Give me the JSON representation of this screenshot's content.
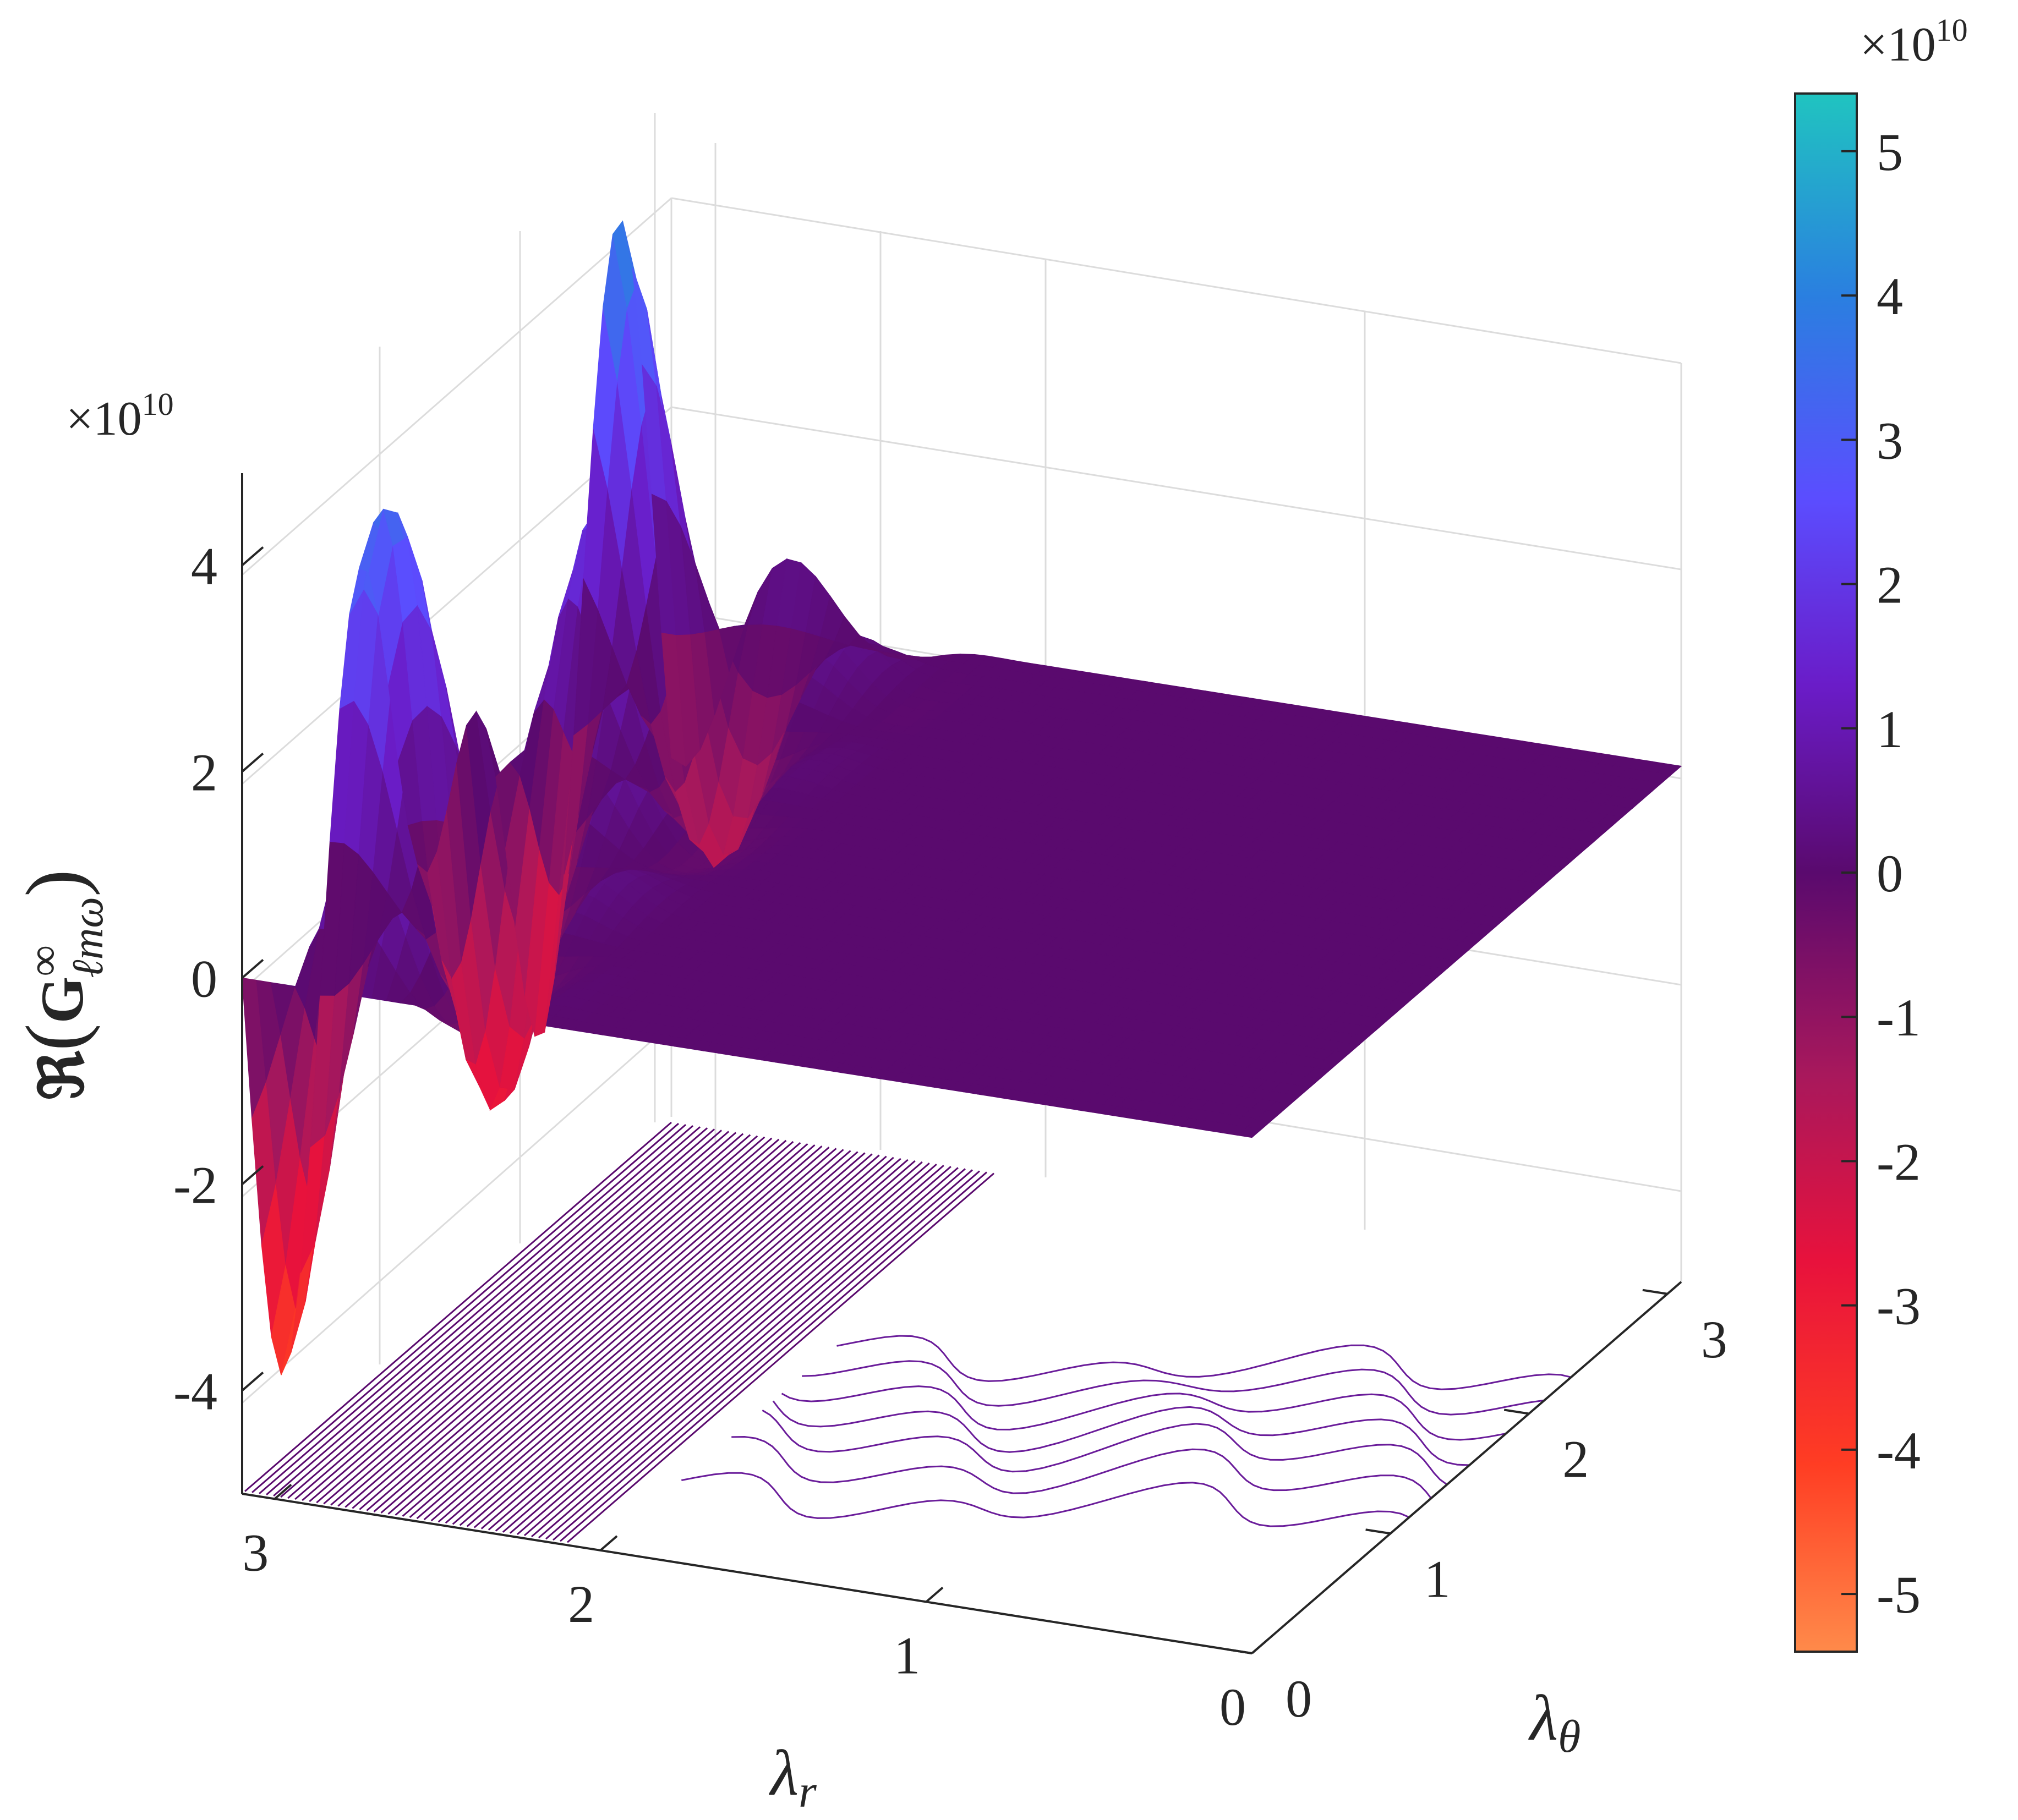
{
  "chart_data": {
    "type": "surface3d",
    "title": "",
    "xlabel": "λ_r",
    "ylabel": "λ_θ",
    "zlabel": "ℜ(G^∞_{ℓmω})",
    "xlabel_main": "λ",
    "xlabel_sub": "r",
    "ylabel_main": "λ",
    "ylabel_sub": "θ",
    "zlabel_main": "ℜ",
    "zlabel_G": "G",
    "zlabel_sup": "∞",
    "zlabel_sub": "ℓmω",
    "z_exponent": "×10",
    "z_exponent_power": "10",
    "x_ticks": [
      "0",
      "1",
      "2",
      "3"
    ],
    "y_ticks": [
      "0",
      "1",
      "2",
      "3"
    ],
    "z_ticks": [
      "-4",
      "-2",
      "0",
      "2",
      "4"
    ],
    "xlim": [
      0,
      3.1
    ],
    "ylim": [
      0,
      3.1
    ],
    "zlim": [
      -5,
      5
    ],
    "peak_region": {
      "lambda_r": [
        2.0,
        3.1
      ],
      "lambda_theta": [
        0.4,
        3.1
      ],
      "z_min": -3.3,
      "z_max": 5.3
    },
    "flat_value": 0,
    "contour_projection": true,
    "grid": true,
    "colorbar": {
      "ticks": [
        "5",
        "4",
        "3",
        "2",
        "1",
        "0",
        "-1",
        "-2",
        "-3",
        "-4",
        "-5"
      ],
      "exponent": "×10",
      "exponent_power": "10",
      "range": [
        -5.4,
        5.4
      ],
      "colors": [
        "#ff8a4a",
        "#ff3d23",
        "#e8123c",
        "#a8185c",
        "#5a0a6e",
        "#6a1cc8",
        "#5b4dff",
        "#2a7fe0",
        "#20c4c0"
      ]
    }
  }
}
